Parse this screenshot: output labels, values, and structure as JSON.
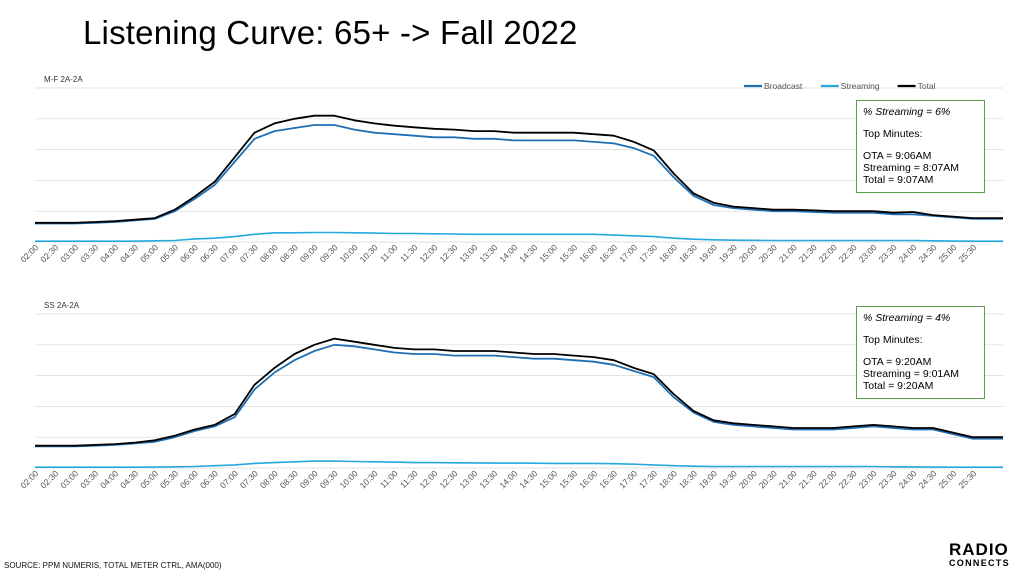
{
  "page": {
    "title": "Listening Curve: 65+ -> Fall 2022",
    "source": "SOURCE: PPM NUMERIS, TOTAL METER CTRL, AMA(000)",
    "logo_line1": "RADIO",
    "logo_line2": "CONNECTS"
  },
  "colors": {
    "broadcast": "#1f6fb5",
    "streaming": "#27a9dd",
    "total": "#000000",
    "grid": "#d9d9d9",
    "box_border": "#5b9e4b"
  },
  "legend": [
    "Broadcast",
    "Streaming",
    "Total"
  ],
  "chart_data": [
    {
      "type": "line",
      "label": "M-F 2A-2A",
      "ylim": [
        0,
        100
      ],
      "grid": true,
      "legend_position": "top-right",
      "x": [
        "02:00",
        "02:30",
        "03:00",
        "03:30",
        "04:00",
        "04:30",
        "05:00",
        "05:30",
        "06:00",
        "06:30",
        "07:00",
        "07:30",
        "08:00",
        "08:30",
        "09:00",
        "09:30",
        "10:00",
        "10:30",
        "11:00",
        "11:30",
        "12:00",
        "12:30",
        "13:00",
        "13:30",
        "14:00",
        "14:30",
        "15:00",
        "15:30",
        "16:00",
        "16:30",
        "17:00",
        "17:30",
        "18:00",
        "18:30",
        "19:00",
        "19:30",
        "20:00",
        "20:30",
        "21:00",
        "21:30",
        "22:00",
        "22:30",
        "23:00",
        "23:30",
        "24:00",
        "24:30",
        "25:00",
        "25:30"
      ],
      "series": [
        {
          "name": "Broadcast",
          "values": [
            12,
            12,
            12,
            12.5,
            13,
            14,
            15,
            20,
            28,
            37,
            52,
            67,
            72,
            74,
            76,
            76,
            73,
            71,
            70,
            69,
            68,
            68,
            67,
            67,
            66,
            66,
            66,
            66,
            65,
            64,
            61,
            56,
            42,
            30,
            24,
            22,
            21,
            20,
            20,
            19.5,
            19,
            19,
            19,
            18,
            18,
            17,
            16,
            15
          ]
        },
        {
          "name": "Streaming",
          "values": [
            0.5,
            0.5,
            0.5,
            0.5,
            0.5,
            0.5,
            0.8,
            1,
            2,
            2.5,
            3.5,
            5,
            6,
            6,
            6.2,
            6.2,
            6,
            5.8,
            5.5,
            5.5,
            5.3,
            5.2,
            5,
            5,
            5,
            5,
            5,
            5,
            5,
            4.5,
            4,
            3.5,
            2.5,
            1.8,
            1.4,
            1.2,
            1.1,
            1,
            1,
            1,
            1,
            1,
            1,
            1,
            1,
            0.8,
            0.6,
            0.5
          ]
        },
        {
          "name": "Total",
          "values": [
            12.5,
            12.5,
            12.5,
            13,
            13.5,
            14.5,
            15.5,
            21,
            29.5,
            39,
            55,
            71,
            77,
            80,
            82,
            82,
            79,
            77,
            75.5,
            74.5,
            73.5,
            73,
            72,
            72,
            71,
            71,
            71,
            71,
            70,
            69,
            65,
            59.5,
            44.5,
            31.5,
            25.5,
            23,
            22,
            21,
            21,
            20.5,
            20,
            20,
            20,
            19,
            19.5,
            17.5,
            16.5,
            15.5
          ]
        }
      ],
      "info": {
        "pct": "% Streaming =  6%",
        "top": "Top Minutes:",
        "ota": "OTA = 9:06AM",
        "streaming": "Streaming = 8:07AM",
        "total": "Total = 9:07AM"
      }
    },
    {
      "type": "line",
      "label": "SS 2A-2A",
      "ylim": [
        0,
        100
      ],
      "grid": true,
      "legend_position": "top-right",
      "x": [
        "02:00",
        "02:30",
        "03:00",
        "03:30",
        "04:00",
        "04:30",
        "05:00",
        "05:30",
        "06:00",
        "06:30",
        "07:00",
        "07:30",
        "08:00",
        "08:30",
        "09:00",
        "09:30",
        "10:00",
        "10:30",
        "11:00",
        "11:30",
        "12:00",
        "12:30",
        "13:00",
        "13:30",
        "14:00",
        "14:30",
        "15:00",
        "15:30",
        "16:00",
        "16:30",
        "17:00",
        "17:30",
        "18:00",
        "18:30",
        "19:00",
        "19:30",
        "20:00",
        "20:30",
        "21:00",
        "21:30",
        "22:00",
        "22:30",
        "23:00",
        "23:30",
        "24:00",
        "24:30",
        "25:00",
        "25:30"
      ],
      "series": [
        {
          "name": "Broadcast",
          "values": [
            14,
            14,
            14,
            14.5,
            15,
            16,
            17,
            20,
            24,
            27,
            33,
            51,
            62,
            70,
            76,
            80,
            79,
            77,
            75,
            74,
            74,
            73,
            73,
            73,
            72,
            71,
            71,
            70,
            69,
            67,
            63,
            59,
            46,
            36,
            30,
            28,
            27,
            26,
            25,
            25,
            25,
            26,
            27,
            26,
            25,
            25,
            22,
            19
          ]
        },
        {
          "name": "Streaming",
          "values": [
            0.5,
            0.5,
            0.5,
            0.5,
            0.5,
            0.5,
            0.6,
            0.8,
            1,
            1.5,
            2,
            3,
            3.5,
            4,
            4.5,
            4.5,
            4.2,
            4,
            3.8,
            3.5,
            3.5,
            3.4,
            3.3,
            3.2,
            3.2,
            3.1,
            3,
            3,
            3,
            2.8,
            2.5,
            2,
            1.5,
            1.2,
            1,
            1,
            1,
            1,
            1,
            1,
            1,
            1,
            1,
            0.8,
            0.7,
            0.6,
            0.5,
            0.5
          ]
        },
        {
          "name": "Total",
          "values": [
            14.5,
            14.5,
            14.5,
            15,
            15.5,
            16.5,
            18,
            21,
            25,
            28,
            35,
            54,
            65,
            74,
            80,
            84,
            82,
            80,
            78,
            77,
            77,
            76,
            76,
            76,
            75,
            74,
            74,
            73,
            72,
            70,
            65,
            61,
            48,
            37,
            31,
            29,
            28,
            27,
            26,
            26,
            26,
            27,
            28,
            27,
            26,
            26,
            23,
            20
          ]
        }
      ],
      "info": {
        "pct": "% Streaming = 4%",
        "top": "Top Minutes:",
        "ota": "OTA = 9:20AM",
        "streaming": "Streaming = 9:01AM",
        "total": "Total = 9:20AM"
      }
    }
  ]
}
